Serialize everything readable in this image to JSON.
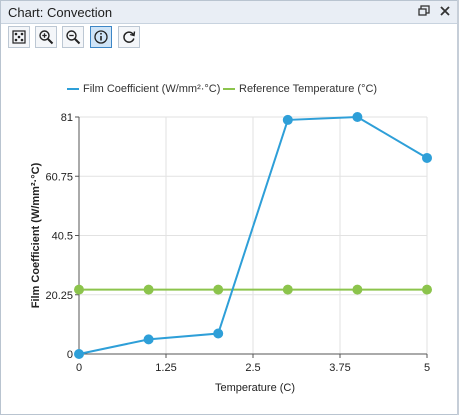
{
  "window": {
    "title": "Chart: Convection",
    "float_icon": "restore-window-icon",
    "close_icon": "close-icon"
  },
  "toolbar": {
    "tools": [
      {
        "name": "zoom-to-fit",
        "icon": "zoom-fit-icon",
        "active": false
      },
      {
        "name": "zoom-in",
        "icon": "zoom-in-icon",
        "active": false
      },
      {
        "name": "zoom-out",
        "icon": "zoom-out-icon",
        "active": false
      },
      {
        "name": "info",
        "icon": "info-icon",
        "active": true
      },
      {
        "name": "refresh",
        "icon": "refresh-icon",
        "active": false
      }
    ]
  },
  "colors": {
    "series1": "#2e9fd8",
    "series2": "#8cc44c",
    "grid": "#e2e2e2",
    "axis": "#555555"
  },
  "chart_data": {
    "type": "line",
    "xlabel": "Temperature (C)",
    "ylabel": "Film Coefficient (W/mm²·°C)",
    "xlim": [
      0,
      5
    ],
    "ylim": [
      0,
      81
    ],
    "xticks": [
      "0",
      "1.25",
      "2.5",
      "3.75",
      "5"
    ],
    "yticks": [
      "0",
      "20.25",
      "40.5",
      "60.75",
      "81"
    ],
    "xtick_values": [
      0,
      1.25,
      2.5,
      3.75,
      5
    ],
    "ytick_values": [
      0,
      20.25,
      40.5,
      60.75,
      81
    ],
    "grid": true,
    "legend_position": "top",
    "series": [
      {
        "name": "Film Coefficient (W/mm²·°C)",
        "x": [
          0,
          1,
          2,
          3,
          4,
          5
        ],
        "y": [
          0,
          5,
          7,
          80,
          81,
          67
        ]
      },
      {
        "name": "Reference Temperature (°C)",
        "x": [
          0,
          1,
          2,
          3,
          4,
          5
        ],
        "y": [
          22,
          22,
          22,
          22,
          22,
          22
        ]
      }
    ]
  }
}
